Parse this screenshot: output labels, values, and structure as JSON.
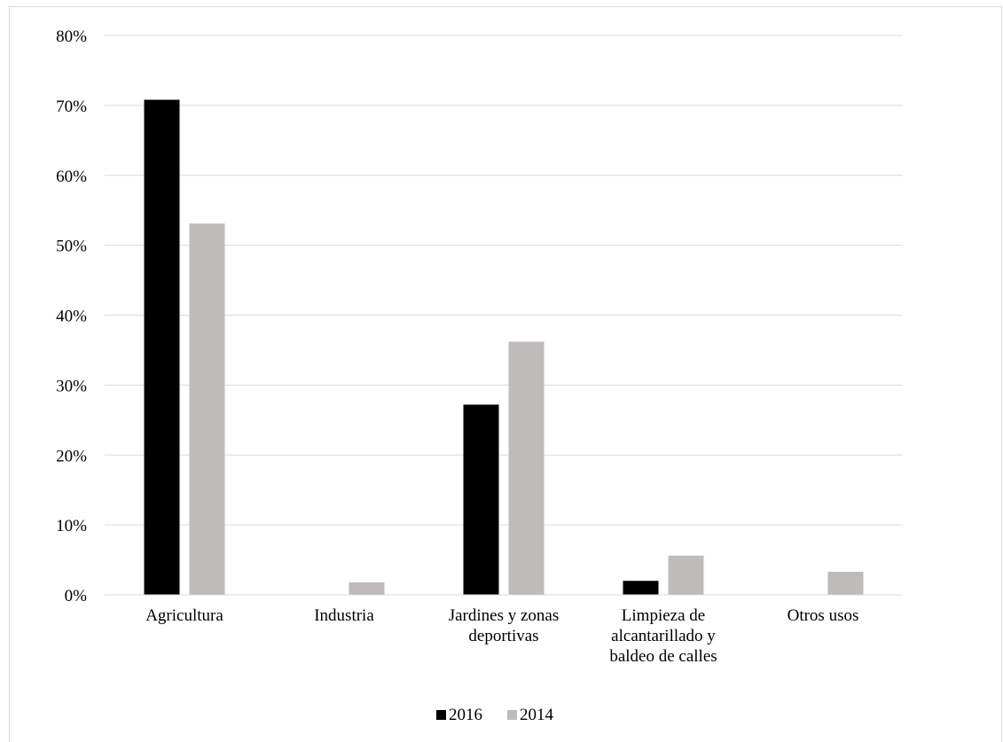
{
  "chart_data": {
    "type": "bar",
    "title": "",
    "xlabel": "",
    "ylabel": "",
    "categories": [
      [
        "Agricultura"
      ],
      [
        "Industria"
      ],
      [
        "Jardines y zonas",
        "deportivas"
      ],
      [
        "Limpieza de",
        "alcantarillado y",
        "baldeo de calles"
      ],
      [
        "Otros usos"
      ]
    ],
    "series": [
      {
        "name": "2016",
        "color": "#000000",
        "values": [
          70.8,
          0,
          27.2,
          2.0,
          0
        ]
      },
      {
        "name": "2014",
        "color": "#bfbbba",
        "values": [
          53.1,
          1.8,
          36.2,
          5.6,
          3.3
        ]
      }
    ],
    "ylim": [
      0,
      80
    ],
    "yticks": [
      "0%",
      "10%",
      "20%",
      "30%",
      "40%",
      "50%",
      "60%",
      "70%",
      "80%"
    ],
    "grid": true,
    "legend": "bottom"
  }
}
